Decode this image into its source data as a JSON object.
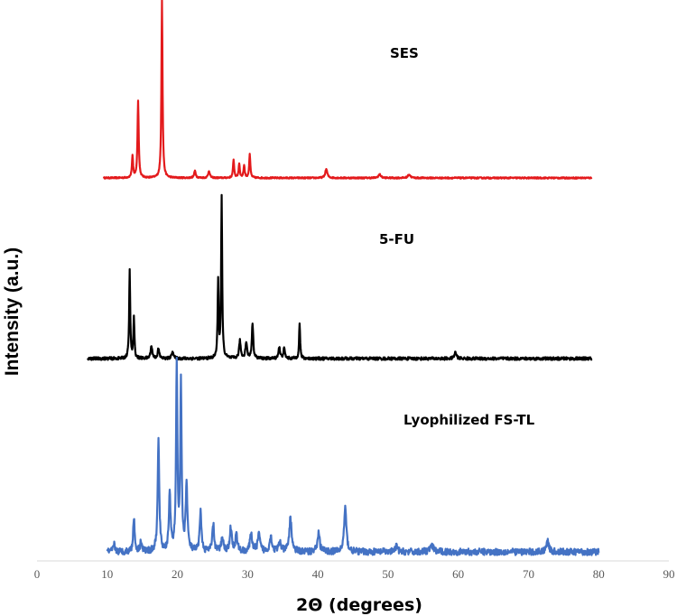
{
  "chart_data": {
    "type": "line",
    "xlabel": "2Θ (degrees)",
    "ylabel": "Intensity (a.u.)",
    "xlim": [
      0,
      90
    ],
    "xticks": [
      0,
      10,
      20,
      30,
      40,
      50,
      60,
      70,
      80,
      90
    ],
    "grid": false,
    "series": [
      {
        "name": "SES",
        "color": "#e31a1c",
        "x_range": [
          9.5,
          79
        ],
        "noise": 0.4,
        "peaks": [
          {
            "x": 13.6,
            "h": 12,
            "w": 0.15
          },
          {
            "x": 14.4,
            "h": 43,
            "w": 0.15
          },
          {
            "x": 17.8,
            "h": 100,
            "w": 0.14
          },
          {
            "x": 22.5,
            "h": 4,
            "w": 0.2
          },
          {
            "x": 24.5,
            "h": 4,
            "w": 0.2
          },
          {
            "x": 28.0,
            "h": 10,
            "w": 0.15
          },
          {
            "x": 28.8,
            "h": 8,
            "w": 0.15
          },
          {
            "x": 29.5,
            "h": 7,
            "w": 0.15
          },
          {
            "x": 30.3,
            "h": 13,
            "w": 0.15
          },
          {
            "x": 41.2,
            "h": 5,
            "w": 0.25
          },
          {
            "x": 48.8,
            "h": 2,
            "w": 0.3
          },
          {
            "x": 53,
            "h": 2,
            "w": 0.3
          }
        ]
      },
      {
        "name": "5-FU",
        "color": "#000000",
        "x_range": [
          7.2,
          79
        ],
        "noise": 0.9,
        "peaks": [
          {
            "x": 13.2,
            "h": 55,
            "w": 0.13
          },
          {
            "x": 13.8,
            "h": 25,
            "w": 0.13
          },
          {
            "x": 16.3,
            "h": 8,
            "w": 0.2
          },
          {
            "x": 17.3,
            "h": 6,
            "w": 0.2
          },
          {
            "x": 19.3,
            "h": 5,
            "w": 0.2
          },
          {
            "x": 25.8,
            "h": 48,
            "w": 0.13
          },
          {
            "x": 26.3,
            "h": 100,
            "w": 0.13
          },
          {
            "x": 28.9,
            "h": 11,
            "w": 0.2
          },
          {
            "x": 29.8,
            "h": 10,
            "w": 0.2
          },
          {
            "x": 30.7,
            "h": 22,
            "w": 0.17
          },
          {
            "x": 34.5,
            "h": 7,
            "w": 0.2
          },
          {
            "x": 35.2,
            "h": 6,
            "w": 0.2
          },
          {
            "x": 37.4,
            "h": 22,
            "w": 0.13
          },
          {
            "x": 59.6,
            "h": 4,
            "w": 0.25
          }
        ]
      },
      {
        "name": "Lyophilized FS-TL",
        "color": "#4472c4",
        "x_range": [
          10,
          80
        ],
        "noise": 1.8,
        "peaks": [
          {
            "x": 11.0,
            "h": 4,
            "w": 0.2
          },
          {
            "x": 13.8,
            "h": 18,
            "w": 0.2
          },
          {
            "x": 14.8,
            "h": 6,
            "w": 0.2
          },
          {
            "x": 17.3,
            "h": 60,
            "w": 0.2
          },
          {
            "x": 18.9,
            "h": 32,
            "w": 0.2
          },
          {
            "x": 19.9,
            "h": 100,
            "w": 0.17
          },
          {
            "x": 20.5,
            "h": 91,
            "w": 0.17
          },
          {
            "x": 21.3,
            "h": 36,
            "w": 0.22
          },
          {
            "x": 23.3,
            "h": 23,
            "w": 0.2
          },
          {
            "x": 25.1,
            "h": 15,
            "w": 0.22
          },
          {
            "x": 26.4,
            "h": 8,
            "w": 0.25
          },
          {
            "x": 27.6,
            "h": 13,
            "w": 0.25
          },
          {
            "x": 28.4,
            "h": 9,
            "w": 0.25
          },
          {
            "x": 30.5,
            "h": 9,
            "w": 0.3
          },
          {
            "x": 31.6,
            "h": 9,
            "w": 0.3
          },
          {
            "x": 33.3,
            "h": 8,
            "w": 0.3
          },
          {
            "x": 34.6,
            "h": 5,
            "w": 0.3
          },
          {
            "x": 36.1,
            "h": 18,
            "w": 0.3
          },
          {
            "x": 40.1,
            "h": 10,
            "w": 0.3
          },
          {
            "x": 43.9,
            "h": 24,
            "w": 0.28
          },
          {
            "x": 51.2,
            "h": 3,
            "w": 0.3
          },
          {
            "x": 56.2,
            "h": 3,
            "w": 0.5
          },
          {
            "x": 72.7,
            "h": 7,
            "w": 0.28
          }
        ]
      }
    ]
  }
}
